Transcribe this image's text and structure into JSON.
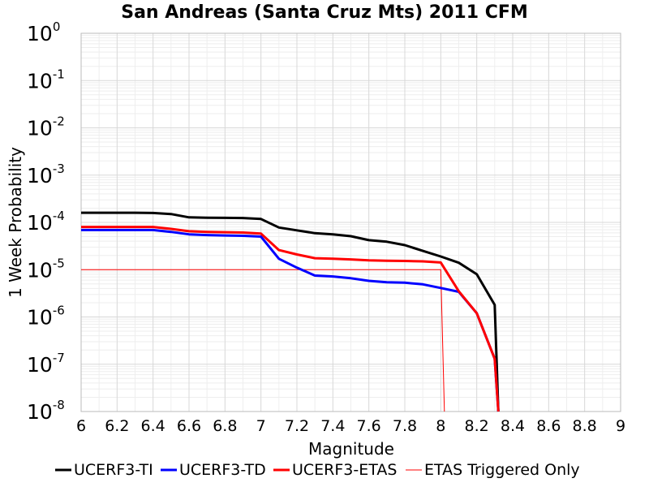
{
  "chart_data": {
    "type": "line",
    "title": "San Andreas (Santa Cruz Mts) 2011 CFM",
    "xlabel": "Magnitude",
    "ylabel": "1 Week Probability",
    "xlim": [
      6,
      9
    ],
    "ylim": [
      1e-08,
      1
    ],
    "y_scale": "log",
    "x_ticks": [
      "6",
      "6.2",
      "6.4",
      "6.6",
      "6.8",
      "7",
      "7.2",
      "7.4",
      "7.6",
      "7.8",
      "8",
      "8.2",
      "8.4",
      "8.6",
      "8.8",
      "9"
    ],
    "y_ticks": [
      {
        "base": "10",
        "exp": "0"
      },
      {
        "base": "10",
        "exp": "-1"
      },
      {
        "base": "10",
        "exp": "-2"
      },
      {
        "base": "10",
        "exp": "-3"
      },
      {
        "base": "10",
        "exp": "-4"
      },
      {
        "base": "10",
        "exp": "-5"
      },
      {
        "base": "10",
        "exp": "-6"
      },
      {
        "base": "10",
        "exp": "-7"
      },
      {
        "base": "10",
        "exp": "-8"
      }
    ],
    "grid": true,
    "legend_position": "bottom",
    "series": [
      {
        "name": "UCERF3-TI",
        "color": "#000000",
        "width": 3,
        "points": [
          [
            6.0,
            0.00016
          ],
          [
            6.1,
            0.00016
          ],
          [
            6.2,
            0.00016
          ],
          [
            6.3,
            0.00016
          ],
          [
            6.4,
            0.000158
          ],
          [
            6.5,
            0.00015
          ],
          [
            6.6,
            0.000128
          ],
          [
            6.7,
            0.000126
          ],
          [
            6.8,
            0.000125
          ],
          [
            6.9,
            0.000124
          ],
          [
            7.0,
            0.000118
          ],
          [
            7.1,
            7.8e-05
          ],
          [
            7.2,
            6.8e-05
          ],
          [
            7.3,
            5.9e-05
          ],
          [
            7.4,
            5.6e-05
          ],
          [
            7.5,
            5.1e-05
          ],
          [
            7.6,
            4.2e-05
          ],
          [
            7.7,
            3.9e-05
          ],
          [
            7.8,
            3.3e-05
          ],
          [
            7.9,
            2.5e-05
          ],
          [
            8.0,
            1.9e-05
          ],
          [
            8.1,
            1.4e-05
          ],
          [
            8.2,
            8e-06
          ],
          [
            8.3,
            1.8e-06
          ],
          [
            8.32,
            1e-08
          ]
        ]
      },
      {
        "name": "UCERF3-TD",
        "color": "#0000ff",
        "width": 3,
        "points": [
          [
            6.0,
            6.9e-05
          ],
          [
            6.1,
            6.9e-05
          ],
          [
            6.2,
            6.9e-05
          ],
          [
            6.3,
            6.9e-05
          ],
          [
            6.4,
            6.9e-05
          ],
          [
            6.5,
            6.3e-05
          ],
          [
            6.6,
            5.6e-05
          ],
          [
            6.7,
            5.4e-05
          ],
          [
            6.8,
            5.3e-05
          ],
          [
            6.9,
            5.2e-05
          ],
          [
            7.0,
            5e-05
          ],
          [
            7.1,
            1.7e-05
          ],
          [
            7.2,
            1.1e-05
          ],
          [
            7.3,
            7.5e-06
          ],
          [
            7.4,
            7.2e-06
          ],
          [
            7.5,
            6.6e-06
          ],
          [
            7.6,
            5.8e-06
          ],
          [
            7.7,
            5.4e-06
          ],
          [
            7.8,
            5.3e-06
          ],
          [
            7.9,
            4.9e-06
          ],
          [
            8.0,
            4.1e-06
          ],
          [
            8.1,
            3.4e-06
          ],
          [
            8.2,
            1.2e-06
          ],
          [
            8.3,
            1.3e-07
          ],
          [
            8.32,
            1e-08
          ]
        ]
      },
      {
        "name": "UCERF3-ETAS",
        "color": "#ff0000",
        "width": 3,
        "points": [
          [
            6.0,
            8e-05
          ],
          [
            6.1,
            8e-05
          ],
          [
            6.2,
            8e-05
          ],
          [
            6.3,
            8e-05
          ],
          [
            6.4,
            8e-05
          ],
          [
            6.5,
            7.3e-05
          ],
          [
            6.6,
            6.5e-05
          ],
          [
            6.7,
            6.3e-05
          ],
          [
            6.8,
            6.2e-05
          ],
          [
            6.9,
            6.1e-05
          ],
          [
            7.0,
            5.8e-05
          ],
          [
            7.1,
            2.6e-05
          ],
          [
            7.2,
            2.1e-05
          ],
          [
            7.3,
            1.75e-05
          ],
          [
            7.4,
            1.7e-05
          ],
          [
            7.5,
            1.65e-05
          ],
          [
            7.6,
            1.58e-05
          ],
          [
            7.7,
            1.55e-05
          ],
          [
            7.8,
            1.53e-05
          ],
          [
            7.9,
            1.5e-05
          ],
          [
            8.0,
            1.42e-05
          ],
          [
            8.1,
            3.5e-06
          ],
          [
            8.2,
            1.2e-06
          ],
          [
            8.3,
            1.3e-07
          ],
          [
            8.32,
            1e-08
          ]
        ]
      },
      {
        "name": "ETAS Triggered Only",
        "color": "#ff0000",
        "width": 1,
        "points": [
          [
            6.0,
            1e-05
          ],
          [
            8.0,
            1e-05
          ],
          [
            8.02,
            1e-08
          ]
        ]
      }
    ]
  }
}
